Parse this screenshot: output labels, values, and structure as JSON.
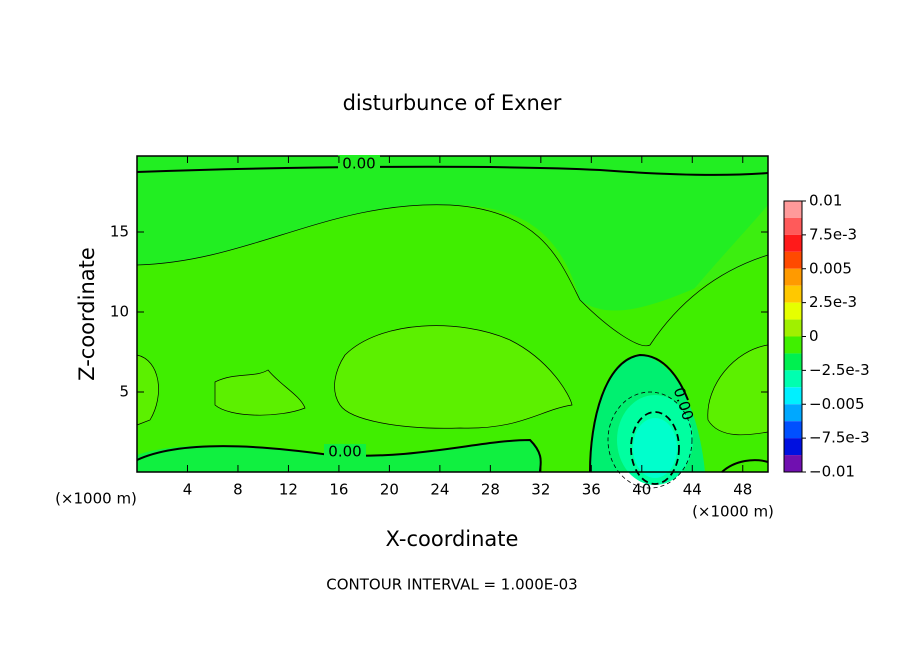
{
  "chart_data": {
    "type": "contour",
    "title": "disturbunce of Exner",
    "xlabel": "X-coordinate",
    "ylabel": "Z-coordinate",
    "x_unit_label": "(×1000 m)",
    "y_unit_label": "(×1000 m)",
    "footer": "CONTOUR INTERVAL = 1.000E-03",
    "contour_labels": [
      "0.00",
      "0.00",
      "0.00"
    ],
    "xlim": [
      0,
      50
    ],
    "ylim": [
      0,
      19.75
    ],
    "xticks": [
      4,
      8,
      12,
      16,
      20,
      24,
      28,
      32,
      36,
      40,
      44,
      48
    ],
    "yticks": [
      5,
      10,
      15
    ],
    "clim": [
      -0.01,
      0.01
    ],
    "cticks": [
      0.01,
      {
        "value": 0.0075,
        "label": "7.5e-3"
      },
      0.005,
      {
        "value": 0.0025,
        "label": "2.5e-3"
      },
      0,
      {
        "value": -0.0025,
        "label": "−2.5e-3"
      },
      {
        "value": -0.005,
        "label": "−0.005"
      },
      {
        "value": -0.0075,
        "label": "−7.5e-3"
      },
      {
        "value": -0.01,
        "label": "−0.01"
      }
    ],
    "colors": [
      "#ff9a9a",
      "#ff5a5a",
      "#ff1a1a",
      "#ff4a00",
      "#ff9a00",
      "#ffc800",
      "#e6ff00",
      "#a0f000",
      "#40f000",
      "#00f050",
      "#00ffb0",
      "#00f0ff",
      "#00a8ff",
      "#0050ff",
      "#0010e0",
      "#7010b0"
    ]
  }
}
